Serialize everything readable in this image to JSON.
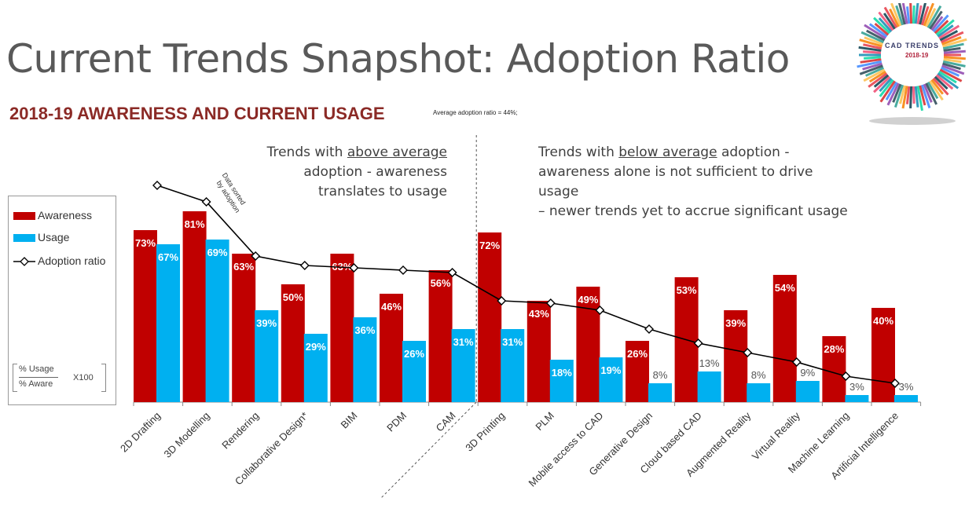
{
  "title": "Current Trends Snapshot: Adoption Ratio",
  "subtitle": "2018-19 AWARENESS AND CURRENT USAGE",
  "average_note": "Average adoption ratio = 44%;",
  "annotations": {
    "above_lines": [
      "Trends with ",
      "above average",
      " adoption - awareness",
      "translates to usage"
    ],
    "below_lines": [
      "Trends with ",
      "below average",
      " adoption -",
      "awareness alone is not sufficient to drive usage",
      "– newer trends yet to accrue significant usage"
    ],
    "sorted_note": [
      "Data sorted",
      "by adoption"
    ]
  },
  "legend": {
    "awareness": "Awareness",
    "usage": "Usage",
    "adoption": "Adoption ratio",
    "formula_numerator": "% Usage",
    "formula_denominator": "% Aware",
    "formula_multiplier": "X100"
  },
  "logo": {
    "title": "CAD TRENDS",
    "year": "2018-19"
  },
  "colors": {
    "awareness": "#c00000",
    "usage": "#00b0f0",
    "line": "#000000",
    "title": "#595959",
    "subtitle": "#8b2a26"
  },
  "chart_data": {
    "type": "bar",
    "categories": [
      "2D Drafting",
      "3D Modelling",
      "Rendering",
      "Collaborative Design*",
      "BIM",
      "PDM",
      "CAM",
      "3D Printing",
      "PLM",
      "Mobile access to CAD",
      "Generative Design",
      "Cloud based CAD",
      "Augmented Reality",
      "Virtual Reality",
      "Machine Learning",
      "Artificial Intelligence"
    ],
    "series": [
      {
        "name": "Awareness",
        "values": [
          73,
          81,
          63,
          50,
          63,
          46,
          56,
          72,
          43,
          49,
          26,
          53,
          39,
          54,
          28,
          40
        ],
        "labels": [
          "73%",
          "81%",
          "63%",
          "50%",
          "63%",
          "46%",
          "56%",
          "72%",
          "43%",
          "49%",
          "26%",
          "53%",
          "39%",
          "54%",
          "28%",
          "40%"
        ]
      },
      {
        "name": "Usage",
        "values": [
          67,
          69,
          39,
          29,
          36,
          26,
          31,
          31,
          18,
          19,
          8,
          13,
          8,
          9,
          3,
          3
        ],
        "labels": [
          "67%",
          "69%",
          "39%",
          "29%",
          "36%",
          "26%",
          "31%",
          "31%",
          "18%",
          "19%",
          "8%",
          "13%",
          "8%",
          "9%",
          "3%",
          "3%"
        ]
      },
      {
        "name": "Adoption ratio",
        "values": [
          92,
          85,
          62,
          58,
          57,
          56,
          55,
          43,
          42,
          39,
          31,
          25,
          21,
          17,
          11,
          8
        ]
      }
    ],
    "ylim": [
      0,
      100
    ],
    "divider_after_category": "CAM",
    "grid": false
  }
}
